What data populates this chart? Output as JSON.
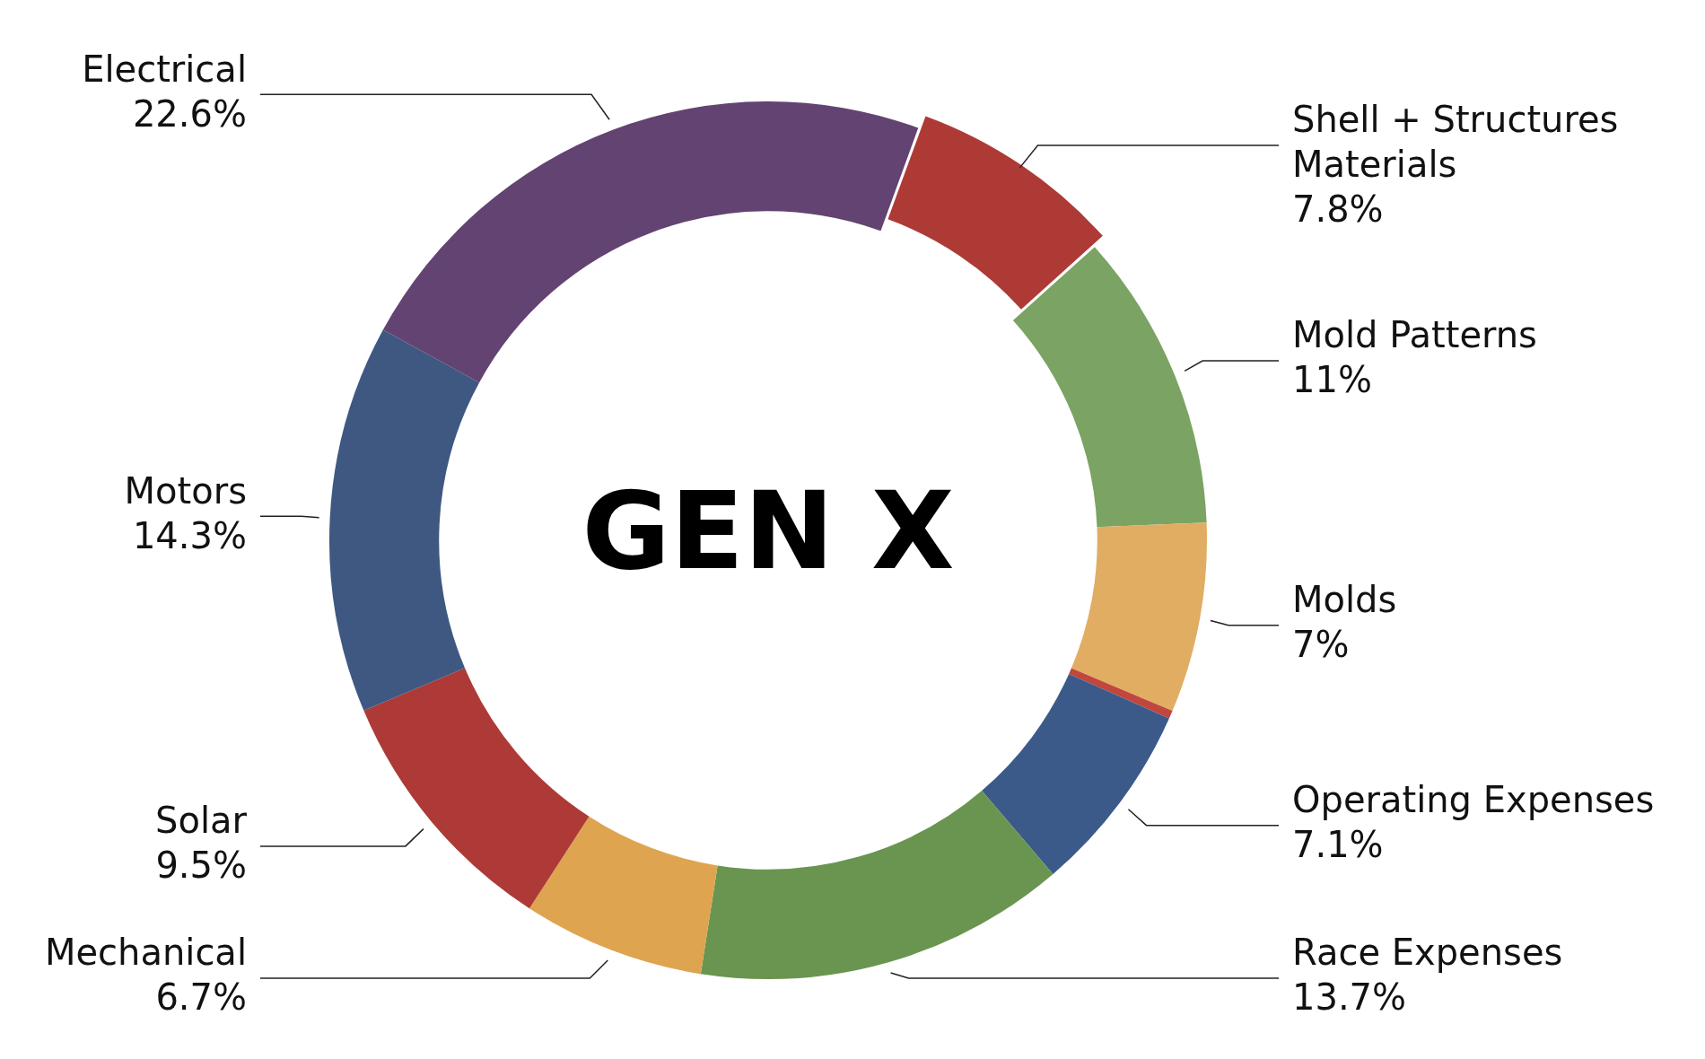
{
  "chart_data": {
    "type": "donut",
    "title": "GEN X",
    "categories": [
      "Shell + Structures Materials",
      "Mold Patterns",
      "Molds",
      null,
      "Operating Expenses",
      "Race Expenses",
      "Mechanical",
      "Solar",
      "Motors",
      "Electrical"
    ],
    "values": [
      7.8,
      11,
      7,
      0.3,
      7.1,
      13.7,
      6.7,
      9.5,
      14.3,
      22.6
    ],
    "value_labels": [
      "7.8%",
      "11%",
      "7%",
      null,
      "7.1%",
      "13.7%",
      "6.7%",
      "9.5%",
      "14.3%",
      "22.6%"
    ],
    "colors": [
      "#ae3a36",
      "#7ba363",
      "#e1ad62",
      "#c0463e",
      "#3b5a8a",
      "#6a9550",
      "#dea450",
      "#ad3a36",
      "#3f5882",
      "#634372"
    ],
    "legend": false
  }
}
